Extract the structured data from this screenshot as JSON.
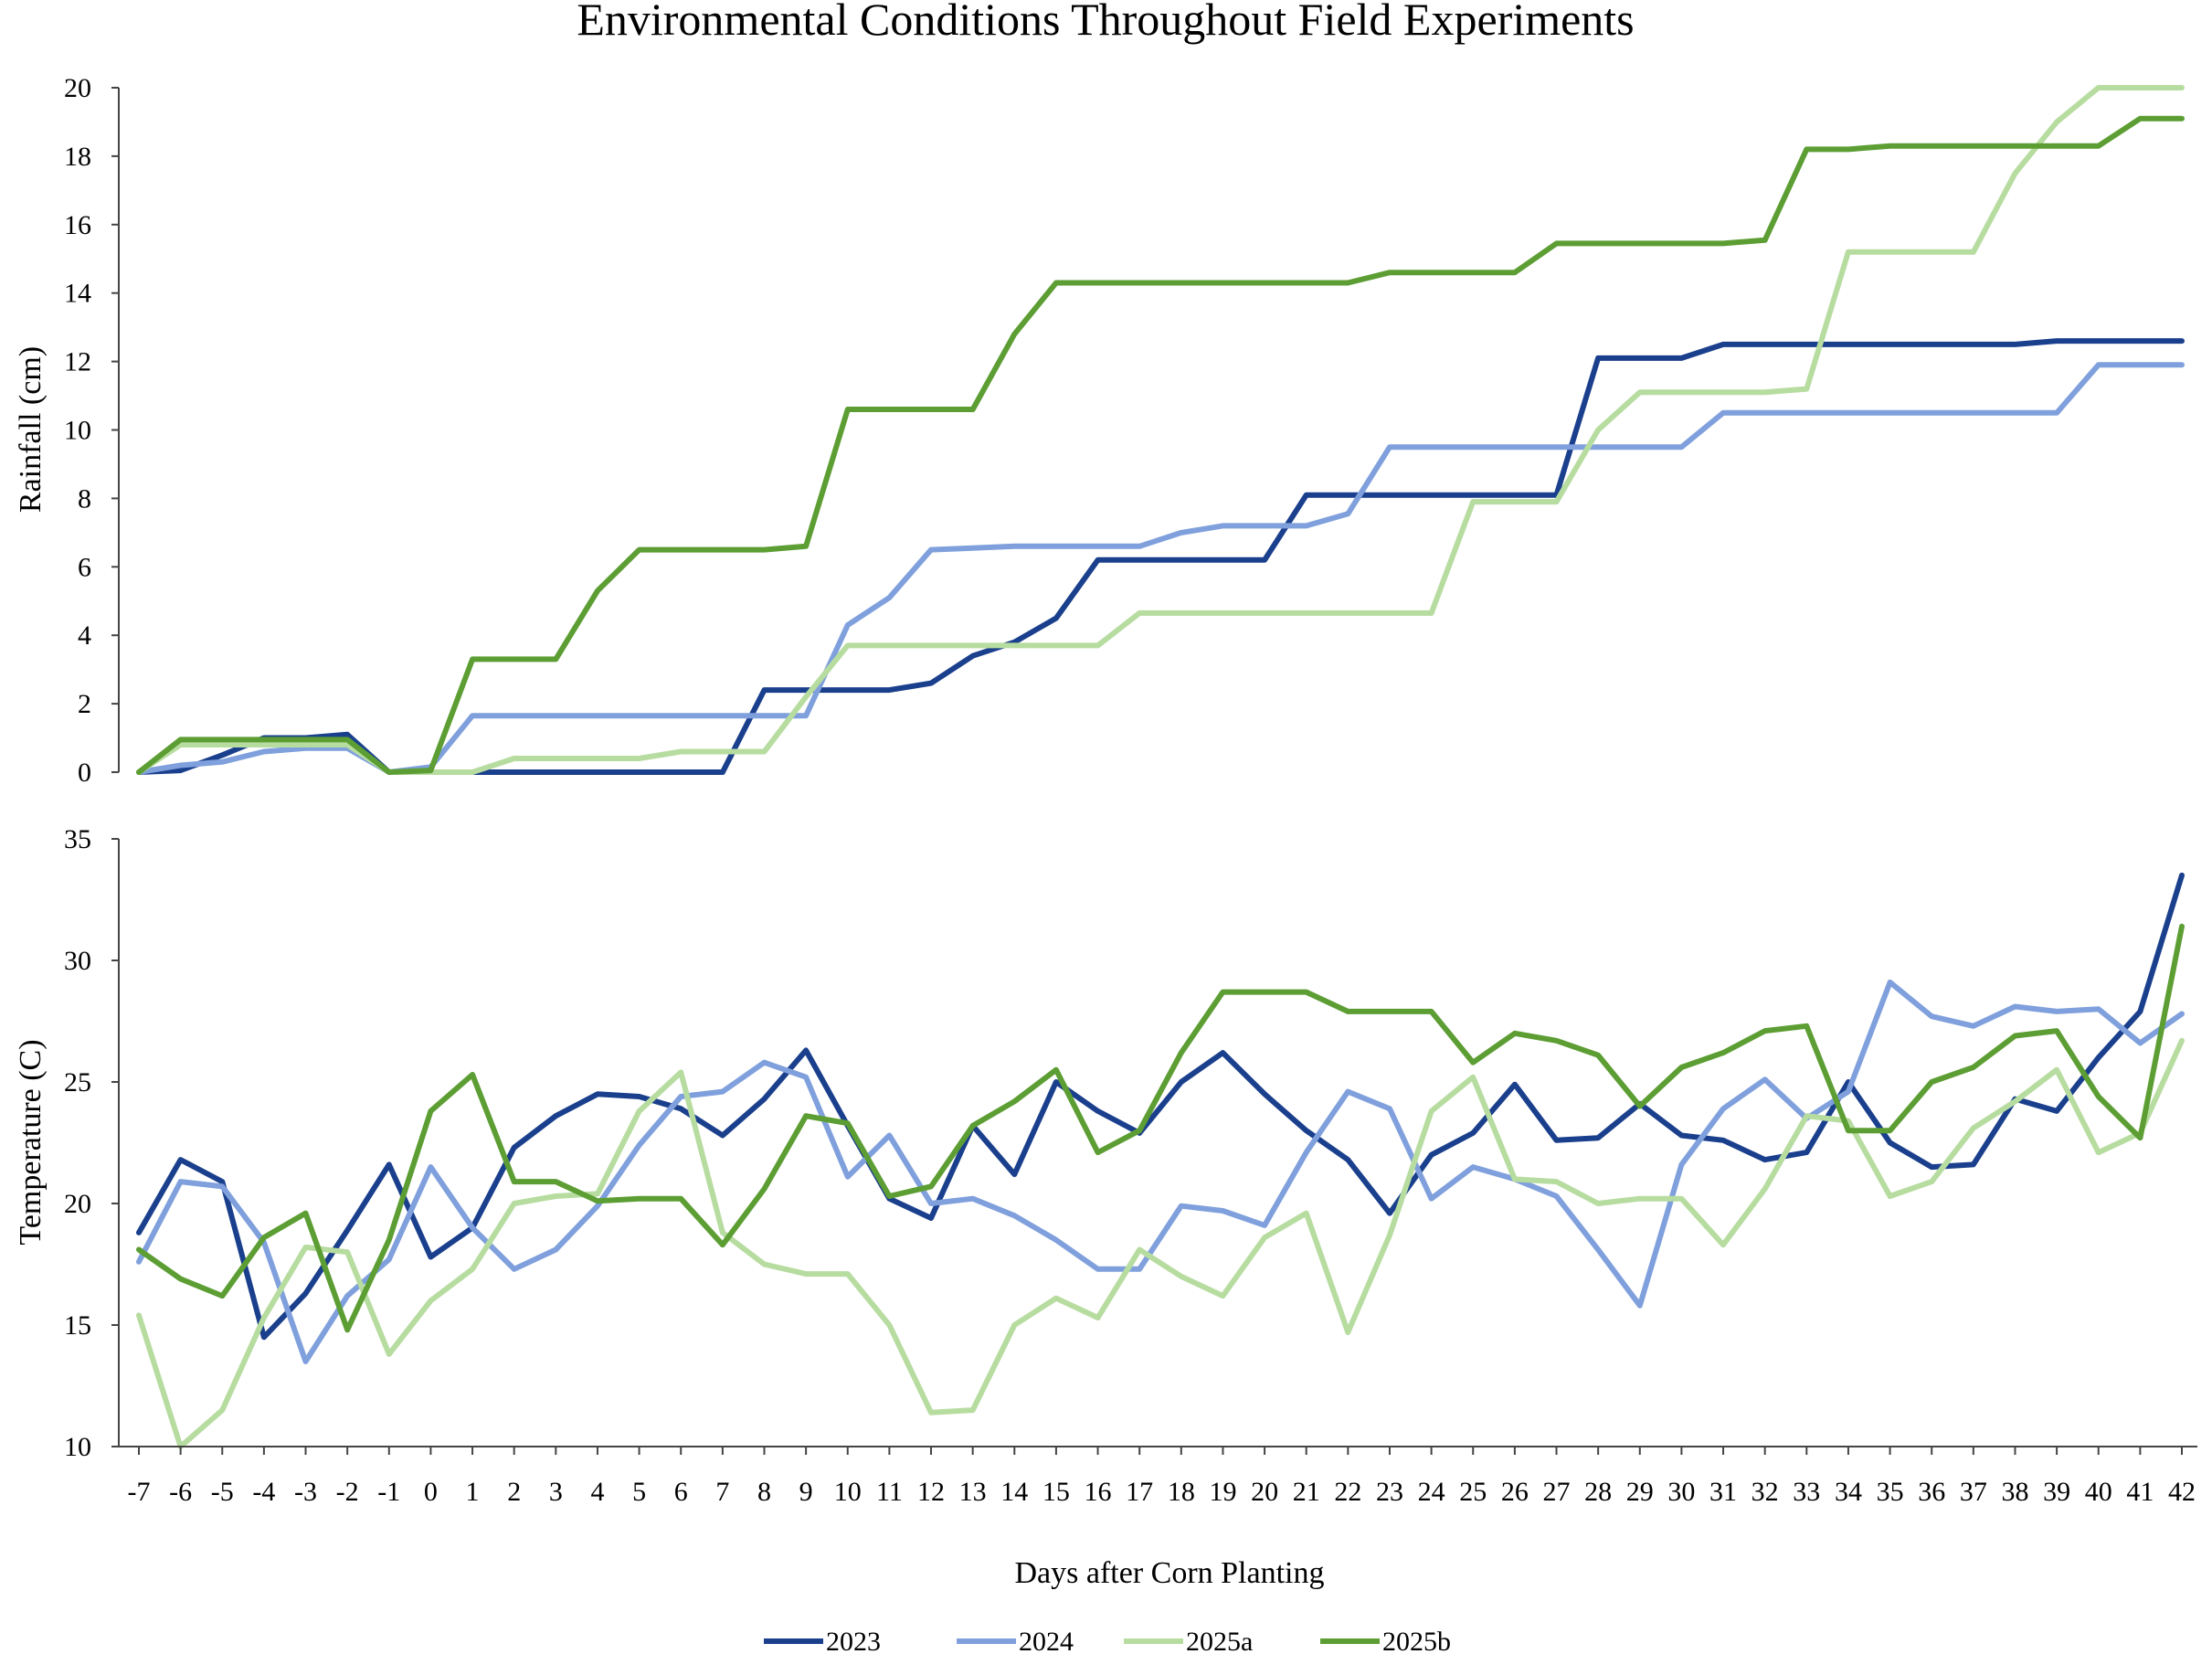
{
  "title": "Environmental Conditions Throughout Field Experiments",
  "xlabel": "Days after Corn Planting",
  "colors": {
    "2023": "#1a3f8c",
    "2024": "#7fa0dc",
    "2025a": "#b7dca0",
    "2025b": "#5c9e33"
  },
  "chart_data": [
    {
      "type": "line",
      "ylabel": "Rainfall (cm)",
      "ylim": [
        0,
        20
      ],
      "yticks": [
        0,
        2,
        4,
        6,
        8,
        10,
        12,
        14,
        16,
        18,
        20
      ],
      "x": [
        -7,
        -6,
        -5,
        -4,
        -3,
        -2,
        -1,
        0,
        1,
        2,
        3,
        4,
        5,
        6,
        7,
        8,
        9,
        10,
        11,
        12,
        13,
        14,
        15,
        16,
        17,
        18,
        19,
        20,
        21,
        22,
        23,
        24,
        25,
        26,
        27,
        28,
        29,
        30,
        31,
        32,
        33,
        34,
        35,
        36,
        37,
        38,
        39,
        40,
        41,
        42
      ],
      "series": [
        {
          "name": "2023",
          "values": [
            0,
            0.05,
            0.5,
            1.0,
            1.0,
            1.1,
            0,
            0,
            0,
            0,
            0,
            0,
            0,
            0,
            0,
            2.4,
            2.4,
            2.4,
            2.4,
            2.6,
            3.4,
            3.8,
            4.5,
            6.2,
            6.2,
            6.2,
            6.2,
            6.2,
            8.1,
            8.1,
            8.1,
            8.1,
            8.1,
            8.1,
            8.1,
            12.1,
            12.1,
            12.1,
            12.5,
            12.5,
            12.5,
            12.5,
            12.5,
            12.5,
            12.5,
            12.5,
            12.6,
            12.6,
            12.6,
            12.6
          ]
        },
        {
          "name": "2024",
          "values": [
            0,
            0.2,
            0.3,
            0.6,
            0.7,
            0.7,
            0,
            0.15,
            1.65,
            1.65,
            1.65,
            1.65,
            1.65,
            1.65,
            1.65,
            1.65,
            1.65,
            4.3,
            5.1,
            6.5,
            6.55,
            6.6,
            6.6,
            6.6,
            6.6,
            7.0,
            7.2,
            7.2,
            7.2,
            7.55,
            9.5,
            9.5,
            9.5,
            9.5,
            9.5,
            9.5,
            9.5,
            9.5,
            10.5,
            10.5,
            10.5,
            10.5,
            10.5,
            10.5,
            10.5,
            10.5,
            10.5,
            11.9,
            11.9,
            11.9
          ]
        },
        {
          "name": "2025a",
          "values": [
            0,
            0.8,
            0.8,
            0.8,
            0.8,
            0.8,
            0,
            0,
            0,
            0.4,
            0.4,
            0.4,
            0.4,
            0.6,
            0.6,
            0.6,
            2.2,
            3.7,
            3.7,
            3.7,
            3.7,
            3.7,
            3.7,
            3.7,
            4.65,
            4.65,
            4.65,
            4.65,
            4.65,
            4.65,
            4.65,
            4.65,
            7.9,
            7.9,
            7.9,
            10.0,
            11.1,
            11.1,
            11.1,
            11.1,
            11.2,
            15.2,
            15.2,
            15.2,
            15.2,
            17.5,
            19.0,
            20.0,
            20.0,
            20.0
          ]
        },
        {
          "name": "2025b",
          "values": [
            0,
            0.95,
            0.95,
            0.95,
            0.95,
            0.95,
            0,
            0.05,
            3.3,
            3.3,
            3.3,
            5.3,
            6.5,
            6.5,
            6.5,
            6.5,
            6.6,
            10.6,
            10.6,
            10.6,
            10.6,
            12.8,
            14.3,
            14.3,
            14.3,
            14.3,
            14.3,
            14.3,
            14.3,
            14.3,
            14.6,
            14.6,
            14.6,
            14.6,
            15.45,
            15.45,
            15.45,
            15.45,
            15.45,
            15.55,
            18.2,
            18.2,
            18.3,
            18.3,
            18.3,
            18.3,
            18.3,
            18.3,
            19.1,
            19.1
          ]
        }
      ]
    },
    {
      "type": "line",
      "ylabel": "Temperature (C)",
      "ylim": [
        10,
        35
      ],
      "yticks": [
        10,
        15,
        20,
        25,
        30,
        35
      ],
      "x": [
        -7,
        -6,
        -5,
        -4,
        -3,
        -2,
        -1,
        0,
        1,
        2,
        3,
        4,
        5,
        6,
        7,
        8,
        9,
        10,
        11,
        12,
        13,
        14,
        15,
        16,
        17,
        18,
        19,
        20,
        21,
        22,
        23,
        24,
        25,
        26,
        27,
        28,
        29,
        30,
        31,
        32,
        33,
        34,
        35,
        36,
        37,
        38,
        39,
        40,
        41,
        42
      ],
      "series": [
        {
          "name": "2023",
          "values": [
            18.8,
            21.8,
            20.9,
            14.5,
            16.3,
            18.9,
            21.6,
            17.8,
            19.0,
            22.3,
            23.6,
            24.5,
            24.4,
            23.9,
            22.8,
            24.3,
            26.3,
            23.2,
            20.2,
            19.4,
            23.2,
            21.2,
            25.0,
            23.8,
            22.9,
            25.0,
            26.2,
            24.5,
            23.0,
            21.8,
            19.6,
            22.0,
            22.9,
            24.9,
            22.6,
            22.7,
            24.1,
            22.8,
            22.6,
            21.8,
            22.1,
            25.0,
            22.5,
            21.5,
            21.6,
            24.3,
            23.8,
            26.0,
            27.9,
            33.5
          ]
        },
        {
          "name": "2024",
          "values": [
            17.6,
            20.9,
            20.7,
            18.4,
            13.5,
            16.2,
            17.7,
            21.5,
            19.0,
            17.3,
            18.1,
            19.9,
            22.4,
            24.4,
            24.6,
            25.8,
            25.2,
            21.1,
            22.8,
            20.0,
            20.2,
            19.5,
            18.5,
            17.3,
            17.3,
            19.9,
            19.7,
            19.1,
            22.1,
            24.6,
            23.9,
            20.2,
            21.5,
            21.0,
            20.3,
            18.1,
            15.8,
            21.6,
            23.9,
            25.1,
            23.5,
            24.6,
            29.1,
            27.7,
            27.3,
            28.1,
            27.9,
            28.0,
            26.6,
            27.8
          ]
        },
        {
          "name": "2025a",
          "values": [
            15.4,
            10.0,
            11.5,
            15.3,
            18.2,
            18.0,
            13.8,
            16.0,
            17.3,
            20.0,
            20.3,
            20.4,
            23.8,
            25.4,
            18.8,
            17.5,
            17.1,
            17.1,
            15.0,
            11.4,
            11.5,
            15.0,
            16.1,
            15.3,
            18.1,
            17.0,
            16.2,
            18.6,
            19.6,
            14.7,
            18.7,
            23.8,
            25.2,
            21.0,
            20.9,
            20.0,
            20.2,
            20.2,
            18.3,
            20.6,
            23.6,
            23.4,
            20.3,
            20.9,
            23.1,
            24.2,
            25.5,
            22.1,
            22.9,
            26.7
          ]
        },
        {
          "name": "2025b",
          "values": [
            18.1,
            16.9,
            16.2,
            18.6,
            19.6,
            14.8,
            18.5,
            23.8,
            25.3,
            20.9,
            20.9,
            20.1,
            20.2,
            20.2,
            18.3,
            20.6,
            23.6,
            23.3,
            20.3,
            20.7,
            23.2,
            24.2,
            25.5,
            22.1,
            23.0,
            26.2,
            28.7,
            28.7,
            28.7,
            27.9,
            27.9,
            27.9,
            25.8,
            27.0,
            26.7,
            26.1,
            24.0,
            25.6,
            26.2,
            27.1,
            27.3,
            23.0,
            23.0,
            25.0,
            25.6,
            26.9,
            27.1,
            24.4,
            22.7,
            31.4
          ]
        }
      ]
    }
  ]
}
